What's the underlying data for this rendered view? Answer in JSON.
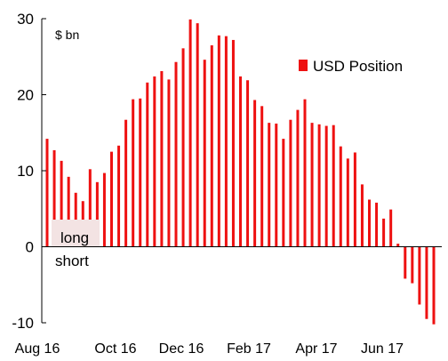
{
  "colors": {
    "bar": "#ee1111",
    "axis": "#000000",
    "annotation_bg": "#f3e3e3"
  },
  "chart_data": {
    "type": "bar",
    "title": "",
    "xlabel": "",
    "ylabel": "",
    "unit_label": "$ bn",
    "ylim": [
      -10,
      30
    ],
    "yticks": [
      30,
      20,
      10,
      0,
      -10
    ],
    "ytick_labels": [
      "30",
      "20",
      "10",
      "0",
      "-10"
    ],
    "xtick_labels": [
      "Aug 16",
      "Oct 16",
      "Dec 16",
      "Feb 17",
      "Apr 17",
      "Jun 17"
    ],
    "grid": false,
    "legend_position": "top-right",
    "annotations": {
      "long": "long",
      "short": "short"
    },
    "series": [
      {
        "name": "USD Position",
        "values": [
          14.2,
          12.7,
          11.3,
          9.2,
          7.1,
          6.0,
          10.2,
          8.5,
          9.7,
          12.5,
          13.3,
          16.7,
          19.4,
          19.5,
          21.6,
          22.4,
          23.1,
          22.0,
          24.3,
          26.1,
          29.9,
          29.4,
          24.6,
          26.5,
          27.8,
          27.7,
          27.2,
          22.4,
          21.9,
          19.3,
          18.5,
          16.3,
          16.2,
          14.2,
          16.7,
          18.0,
          19.4,
          16.3,
          16.1,
          15.9,
          16.0,
          13.2,
          11.6,
          12.4,
          8.2,
          6.2,
          5.8,
          3.7,
          4.9,
          0.4,
          -4.2,
          -4.8,
          -7.6,
          -9.5,
          -10.2
        ]
      }
    ]
  }
}
